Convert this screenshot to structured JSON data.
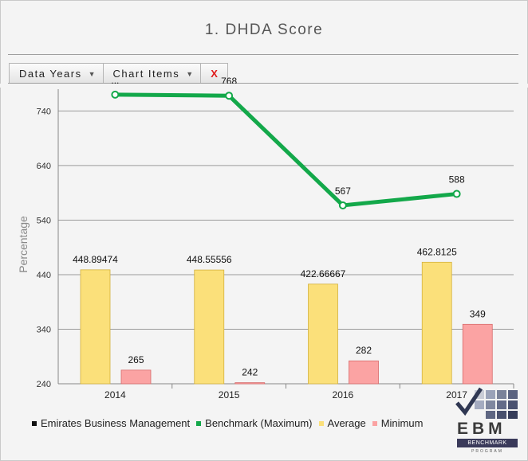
{
  "title": "1. DHDA Score",
  "toolbar": {
    "data_years_label": "Data Years",
    "chart_items_label": "Chart Items",
    "close_label": "X"
  },
  "logo": {
    "text": "EBM",
    "band": "BENCHMARK",
    "sub": "PROGRAM"
  },
  "colors": {
    "benchmark": "#13a84a",
    "average": "#fbe07a",
    "average_edge": "#d4b13c",
    "minimum": "#fba3a3",
    "minimum_edge": "#d86a6a",
    "emirates": "#111111"
  },
  "chart_data": {
    "type": "bar",
    "title": "1. DHDA Score",
    "ylabel": "Percentage",
    "xlabel": "",
    "ylim": [
      240,
      780
    ],
    "yticks": [
      240,
      340,
      440,
      540,
      640,
      740
    ],
    "categories": [
      "2014",
      "2015",
      "2016",
      "2017"
    ],
    "series": [
      {
        "name": "Emirates Business Management",
        "kind": "line",
        "values": [
          null,
          null,
          null,
          null
        ]
      },
      {
        "name": "Benchmark (Maximum)",
        "kind": "line",
        "values": [
          770,
          768,
          567,
          588
        ],
        "labels": [
          "...",
          "768",
          "567",
          "588"
        ]
      },
      {
        "name": "Average",
        "kind": "bar",
        "values": [
          448.89474,
          448.55556,
          422.66667,
          462.8125
        ],
        "labels": [
          "448.89474",
          "448.55556",
          "422.66667",
          "462.8125"
        ]
      },
      {
        "name": "Minimum",
        "kind": "bar",
        "values": [
          265,
          242,
          282,
          349
        ],
        "labels": [
          "265",
          "242",
          "282",
          "349"
        ]
      }
    ],
    "grid": true,
    "legend_position": "bottom"
  }
}
